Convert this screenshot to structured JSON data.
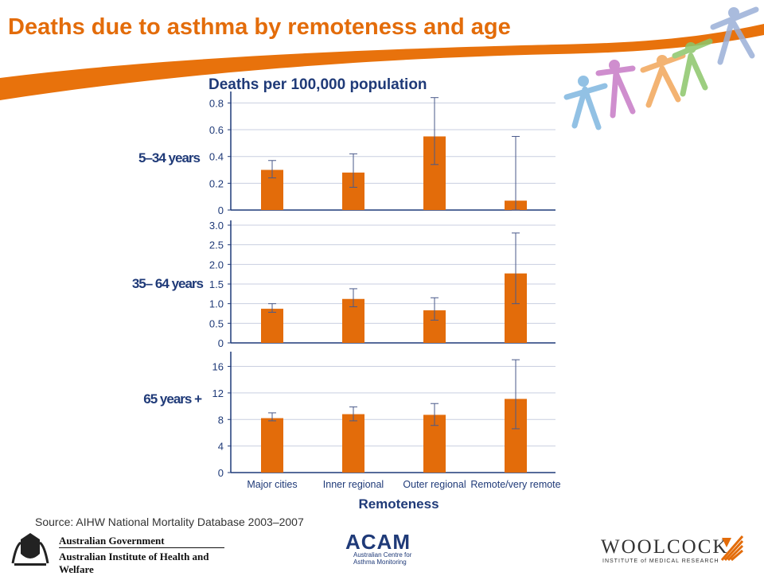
{
  "slide": {
    "title": "Deaths due to asthma by remoteness and age",
    "source": "Source: AIHW National Mortality Database 2003–2007",
    "logos": {
      "gov_line1": "Australian Government",
      "gov_line2": "Australian Institute of Health and Welfare",
      "acam_word": "ACAM",
      "acam_sub1": "Australian Centre for",
      "acam_sub2": "Asthma Monitoring",
      "woolcock_word": "WOOLCOCK",
      "woolcock_sub": "INSTITUTE of MEDICAL RESEARCH"
    },
    "colors": {
      "title": "#E36C0A",
      "bar": "#E36C0A",
      "swoosh": "#E8720C",
      "text_navy": "#1F3A78"
    }
  },
  "chart_data": [
    {
      "type": "bar",
      "title": "Deaths per 100,000 population",
      "panel_label": "5–34 years",
      "categories": [
        "Major cities",
        "Inner regional",
        "Outer regional",
        "Remote/very remote"
      ],
      "values": [
        0.3,
        0.28,
        0.55,
        0.07
      ],
      "error_low": [
        0.24,
        0.17,
        0.34,
        0.0
      ],
      "error_high": [
        0.37,
        0.42,
        0.84,
        0.55
      ],
      "yticks": [
        0,
        0.2,
        0.4,
        0.6,
        0.8
      ],
      "ytick_labels": [
        "0",
        "0.2",
        "0.4",
        "0.6",
        "0.8"
      ],
      "ylim": [
        0,
        0.85
      ],
      "grid": true
    },
    {
      "type": "bar",
      "panel_label": "35– 64 years",
      "categories": [
        "Major cities",
        "Inner regional",
        "Outer regional",
        "Remote/very remote"
      ],
      "values": [
        0.87,
        1.12,
        0.83,
        1.77
      ],
      "error_low": [
        0.78,
        0.92,
        0.58,
        1.0
      ],
      "error_high": [
        1.0,
        1.38,
        1.15,
        2.8
      ],
      "yticks": [
        0,
        0.5,
        1.0,
        1.5,
        2.0,
        2.5,
        3.0
      ],
      "ytick_labels": [
        "0",
        "0.5",
        "1.0",
        "1.5",
        "2.0",
        "2.5",
        "3.0"
      ],
      "ylim": [
        0,
        3.0
      ],
      "grid": true
    },
    {
      "type": "bar",
      "panel_label": "65 years +",
      "xlabel": "Remoteness",
      "categories": [
        "Major cities",
        "Inner regional",
        "Outer regional",
        "Remote/very remote"
      ],
      "tick_labels": [
        "Major cities",
        "Inner regional",
        "Outer regional",
        "Remote/very remote"
      ],
      "values": [
        8.2,
        8.8,
        8.7,
        11.1
      ],
      "error_low": [
        7.8,
        7.8,
        7.1,
        6.6
      ],
      "error_high": [
        9.0,
        9.9,
        10.4,
        17.0
      ],
      "yticks": [
        0,
        4,
        8,
        12,
        16
      ],
      "ytick_labels": [
        "0",
        "4",
        "8",
        "12",
        "16"
      ],
      "ylim": [
        0,
        17.5
      ],
      "grid": true
    }
  ]
}
